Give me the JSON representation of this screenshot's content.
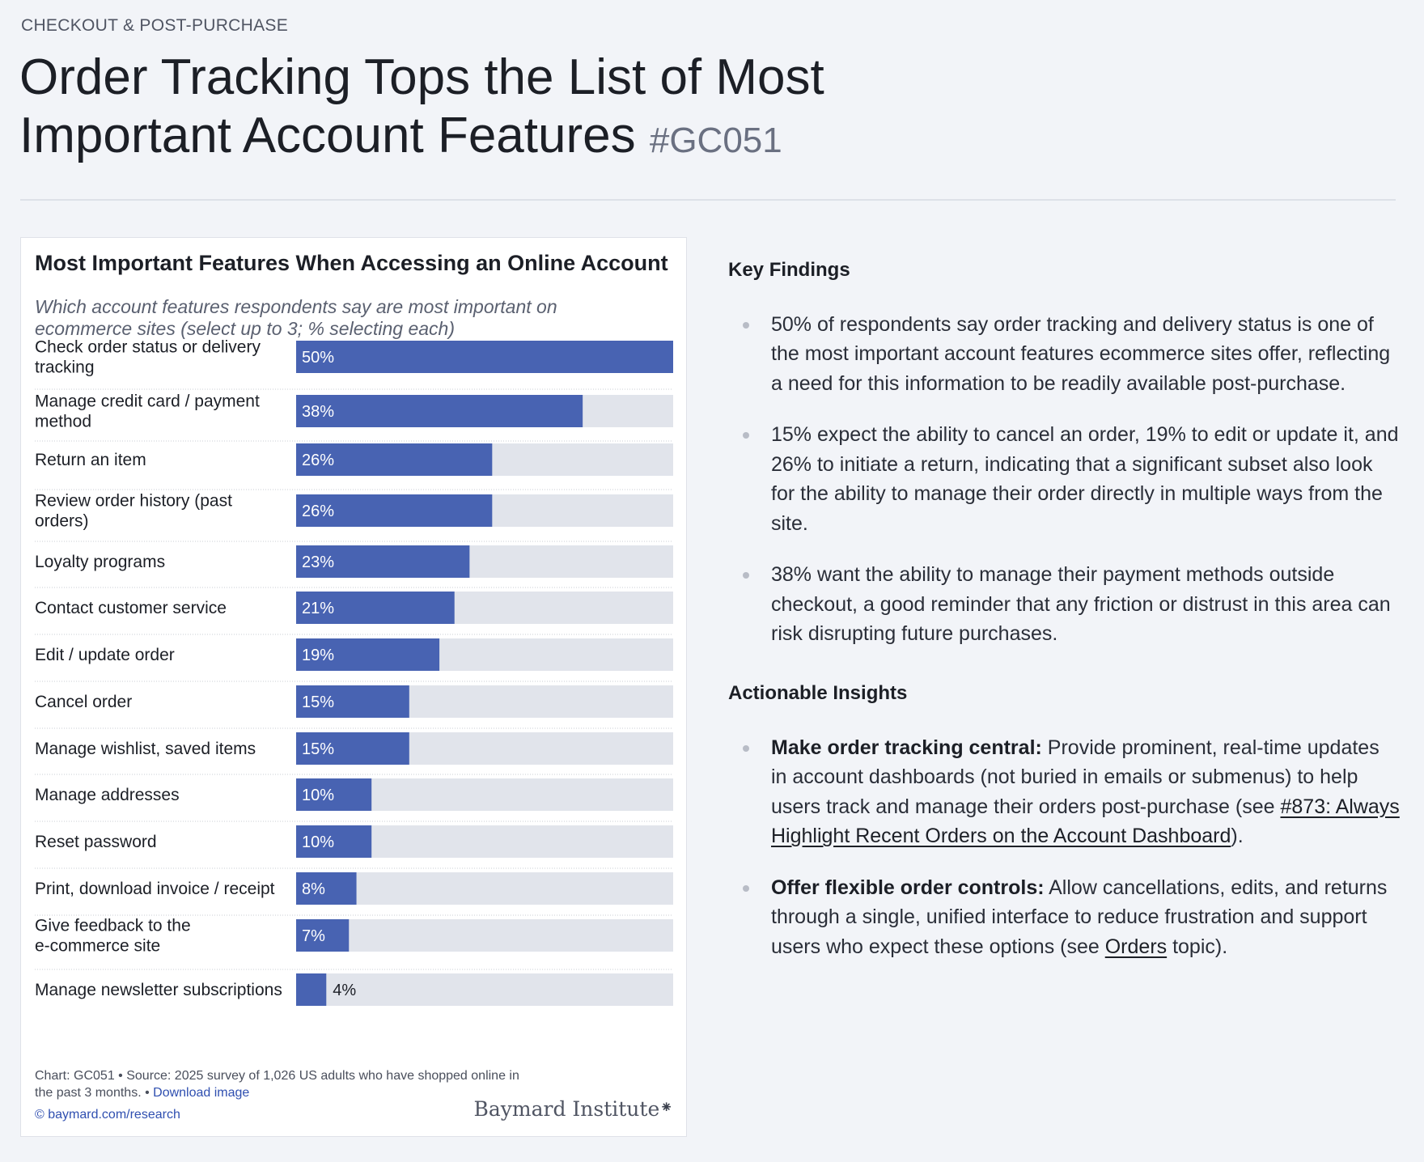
{
  "header": {
    "eyebrow": "CHECKOUT & POST-PURCHASE",
    "title": "Order Tracking Tops the List of Most Important Account Features",
    "code": "#GC051"
  },
  "chart_card": {
    "title": "Most Important Features When Accessing an Online Account",
    "subtitle": "Which account features respondents say are most important on ecommerce sites (select up to 3; % selecting each)",
    "footnote_chart": "Chart: GC051",
    "footnote_source": "Source: 2025 survey of 1,026 US adults who have shopped online in the past 3 months.",
    "download_label": "Download image",
    "site_link": "© baymard.com/research",
    "logo_text": "Baymard Institute"
  },
  "chart_data": {
    "type": "bar",
    "orientation": "horizontal",
    "title": "Most Important Features When Accessing an Online Account",
    "categories": [
      "Check order status or delivery tracking",
      "Manage credit card / payment method",
      "Return an item",
      "Review order history (past orders)",
      "Loyalty programs",
      "Contact customer service",
      "Edit / update order",
      "Cancel order",
      "Manage wishlist, saved items",
      "Manage addresses",
      "Reset password",
      "Print, download invoice / receipt",
      "Give feedback to the e-commerce site",
      "Manage newsletter subscriptions"
    ],
    "values": [
      50,
      38,
      26,
      26,
      23,
      21,
      19,
      15,
      15,
      10,
      10,
      8,
      7,
      4
    ],
    "value_labels": [
      "50%",
      "38%",
      "26%",
      "26%",
      "23%",
      "21%",
      "19%",
      "15%",
      "15%",
      "10%",
      "10%",
      "8%",
      "7%",
      "4%"
    ],
    "xlim": [
      0,
      50
    ],
    "unit": "%",
    "colors": {
      "bar": "#4863b2",
      "track": "#e1e4eb"
    }
  },
  "findings": {
    "heading": "Key Findings",
    "items": [
      "50% of respondents say order tracking and delivery status is one of the most important account features ecommerce sites offer, reflecting a need for this information to be readily available post-purchase.",
      "15% expect the ability to cancel an order, 19% to edit or update it, and 26% to initiate a return, indicating that a significant subset also look for the ability to manage their order directly in multiple ways from the site.",
      "38% want the ability to manage their payment methods outside checkout, a good reminder that any friction or distrust in this area can risk disrupting future purchases."
    ]
  },
  "insights": {
    "heading": "Actionable Insights",
    "items": [
      {
        "bold": "Make order tracking central:",
        "text": " Provide prominent, real-time updates in account dashboards (not buried in emails or submenus) to help users track and manage their orders post-purchase (see ",
        "link": "#873: Always Highlight Recent Orders on the Account Dashboard",
        "tail": ")."
      },
      {
        "bold": "Offer flexible order controls:",
        "text": " Allow cancellations, edits, and returns through a single, unified interface to reduce frustration and support users who expect these options (see ",
        "link": "Orders",
        "tail": " topic)."
      }
    ]
  }
}
